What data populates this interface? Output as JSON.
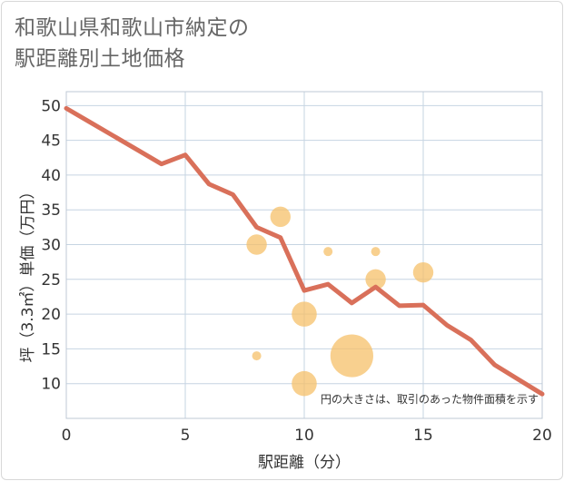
{
  "chart_data": {
    "type": "scatter",
    "title": "和歌山県和歌山市納定の\n駅距離別土地価格",
    "xlabel": "駅距離（分）",
    "ylabel": "坪（3.3㎡）単価（万円）",
    "xlim": [
      0,
      20
    ],
    "ylim": [
      5,
      52
    ],
    "x_ticks": [
      0,
      5,
      10,
      15,
      20
    ],
    "y_ticks": [
      10,
      15,
      20,
      25,
      30,
      35,
      40,
      45,
      50
    ],
    "grid": true,
    "note": "円の大きさは、取引のあった物件面積を示す",
    "line": {
      "name": "trend",
      "color": "#d9705a",
      "x": [
        0,
        1,
        2,
        3,
        4,
        5,
        6,
        7,
        8,
        9,
        10,
        11,
        12,
        13,
        14,
        15,
        16,
        17,
        18,
        19,
        20
      ],
      "y": [
        49.6,
        47.6,
        45.6,
        43.6,
        41.6,
        42.9,
        38.7,
        37.2,
        32.5,
        31.0,
        23.4,
        24.3,
        21.6,
        23.9,
        21.2,
        21.3,
        18.4,
        16.3,
        12.7,
        10.6,
        8.5
      ]
    },
    "points": [
      {
        "x": 8,
        "y": 30,
        "size": 2
      },
      {
        "x": 9,
        "y": 34,
        "size": 2
      },
      {
        "x": 8,
        "y": 14,
        "size": 1
      },
      {
        "x": 10,
        "y": 20,
        "size": 3
      },
      {
        "x": 10,
        "y": 10,
        "size": 3
      },
      {
        "x": 11,
        "y": 29,
        "size": 1
      },
      {
        "x": 12,
        "y": 14,
        "size": 10
      },
      {
        "x": 13,
        "y": 29,
        "size": 1
      },
      {
        "x": 13,
        "y": 25,
        "size": 2
      },
      {
        "x": 15,
        "y": 26,
        "size": 2
      }
    ],
    "point_color": "#f5c06a"
  }
}
